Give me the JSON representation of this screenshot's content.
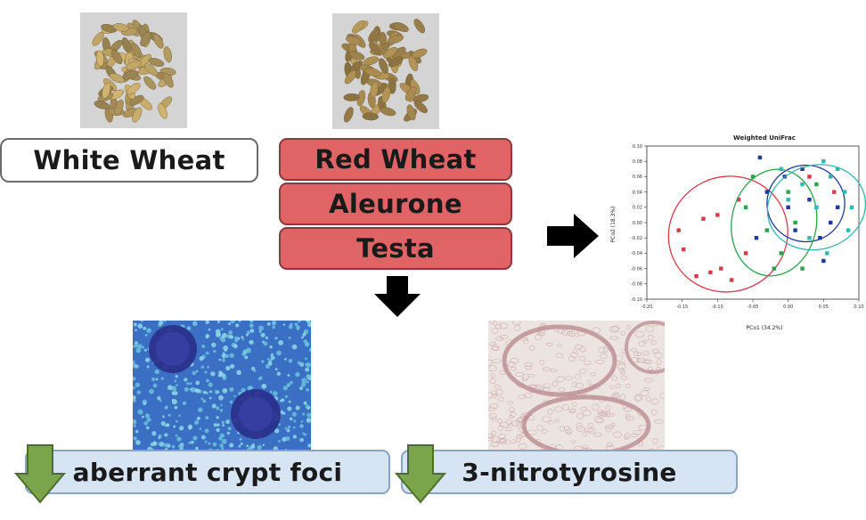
{
  "labels": {
    "white_wheat": "White Wheat",
    "red_wheat": "Red Wheat",
    "aleurone": "Aleurone",
    "testa": "Testa",
    "aberrant_crypt_foci": "aberrant crypt foci",
    "nitrotyrosine": "3-nitrotyrosine"
  },
  "colors": {
    "red_box": "#e06466",
    "blue_box": "#d6e4f3",
    "green_arrow": "#7aa54a"
  },
  "chart_data": {
    "type": "scatter",
    "title": "Weighted UniFrac",
    "xlabel": "PCo1 (34.2%)",
    "ylabel": "PCo2 (18.3%)",
    "xlim": [
      -0.2,
      0.1
    ],
    "ylim": [
      -0.1,
      0.1
    ],
    "x_ticks": [
      "-0.20",
      "-0.15",
      "-0.10",
      "-0.05",
      "0.00",
      "0.05",
      "0.10"
    ],
    "y_ticks": [
      "0.10",
      "0.08",
      "0.06",
      "0.04",
      "0.02",
      "0.00",
      "-0.02",
      "-0.04",
      "-0.06",
      "-0.08",
      "-0.10"
    ],
    "series": [
      {
        "name": "red",
        "color": "#d93a4a",
        "points": [
          [
            -0.155,
            -0.01
          ],
          [
            -0.148,
            -0.035
          ],
          [
            -0.13,
            -0.07
          ],
          [
            -0.11,
            -0.065
          ],
          [
            -0.095,
            -0.06
          ],
          [
            -0.1,
            0.01
          ],
          [
            -0.12,
            0.005
          ],
          [
            -0.08,
            -0.075
          ],
          [
            -0.07,
            0.03
          ],
          [
            -0.06,
            -0.04
          ],
          [
            0.065,
            0.04
          ],
          [
            0.03,
            0.06
          ]
        ],
        "ellipse": {
          "cx": -0.085,
          "cy": -0.015,
          "rx": 0.085,
          "ry": 0.075,
          "angle": -25
        }
      },
      {
        "name": "blue",
        "color": "#1e3a9a",
        "points": [
          [
            -0.04,
            0.085
          ],
          [
            -0.03,
            0.04
          ],
          [
            0.0,
            0.02
          ],
          [
            0.01,
            -0.01
          ],
          [
            0.03,
            0.03
          ],
          [
            0.045,
            -0.02
          ],
          [
            0.06,
            0.0
          ],
          [
            0.05,
            -0.05
          ],
          [
            -0.005,
            0.06
          ],
          [
            0.02,
            0.07
          ],
          [
            0.07,
            0.02
          ],
          [
            -0.045,
            -0.02
          ]
        ],
        "ellipse": {
          "cx": 0.025,
          "cy": 0.025,
          "rx": 0.055,
          "ry": 0.05,
          "angle": 0
        }
      },
      {
        "name": "green",
        "color": "#2aa24a",
        "points": [
          [
            -0.05,
            0.06
          ],
          [
            -0.03,
            -0.01
          ],
          [
            -0.01,
            -0.04
          ],
          [
            0.0,
            0.04
          ],
          [
            0.02,
            -0.06
          ],
          [
            -0.02,
            -0.06
          ],
          [
            0.01,
            0.0
          ],
          [
            0.04,
            0.05
          ],
          [
            -0.06,
            0.02
          ]
        ],
        "ellipse": {
          "cx": -0.02,
          "cy": 0.0,
          "rx": 0.06,
          "ry": 0.07,
          "angle": 10
        }
      },
      {
        "name": "cyan",
        "color": "#33b5b0",
        "points": [
          [
            -0.01,
            0.07
          ],
          [
            0.02,
            0.05
          ],
          [
            0.04,
            0.02
          ],
          [
            0.06,
            0.06
          ],
          [
            0.08,
            0.04
          ],
          [
            0.085,
            -0.01
          ],
          [
            0.055,
            -0.04
          ],
          [
            0.03,
            -0.02
          ],
          [
            0.0,
            0.03
          ],
          [
            0.07,
            0.07
          ],
          [
            0.05,
            0.08
          ],
          [
            0.09,
            0.02
          ]
        ],
        "ellipse": {
          "cx": 0.04,
          "cy": 0.02,
          "rx": 0.07,
          "ry": 0.055,
          "angle": -15
        }
      }
    ]
  }
}
